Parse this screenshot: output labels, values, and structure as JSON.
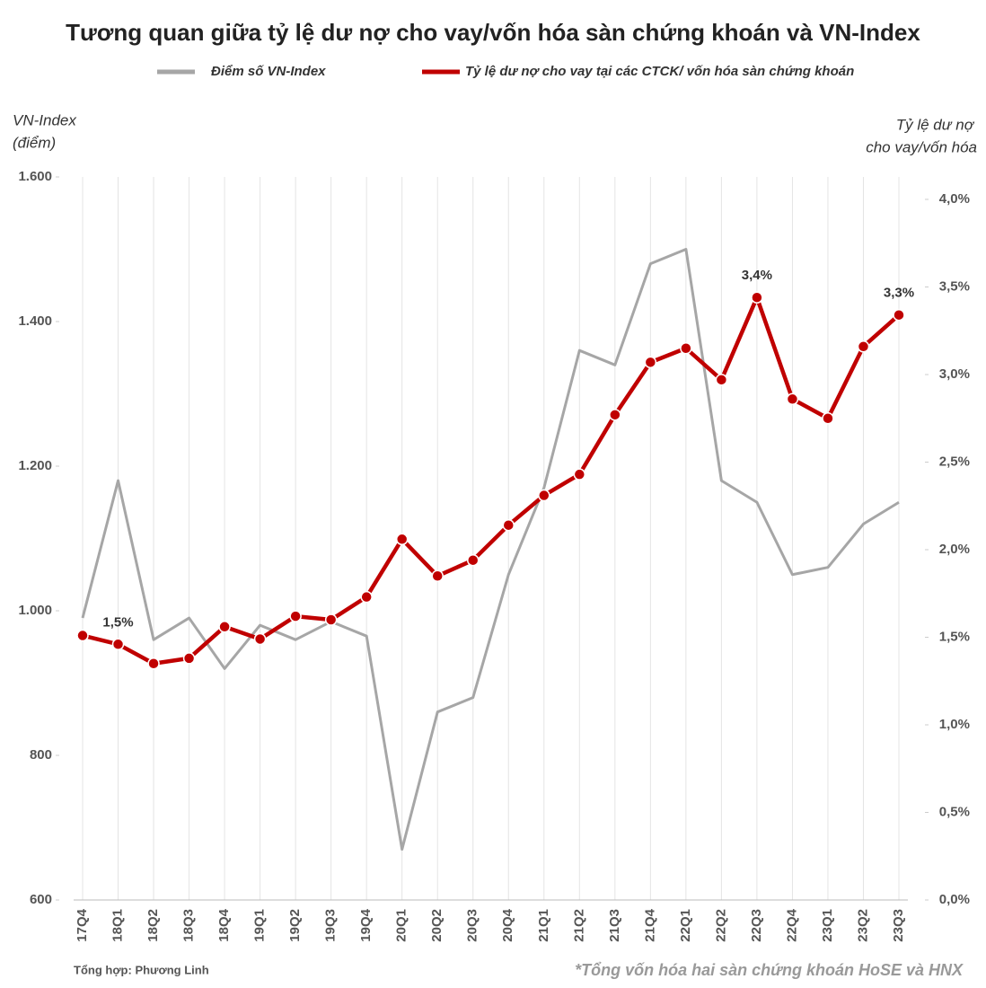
{
  "chart_data": {
    "type": "line",
    "title": "Tương quan giữa tỷ lệ dư nợ cho vay/vốn hóa sàn chứng khoán và VN-Index",
    "y_label": [
      "VN-Index",
      "(điểm)"
    ],
    "y2_label": [
      "Tỷ lệ dư nợ",
      "cho vay/vốn hóa"
    ],
    "source": "Tổng hợp: Phương Linh",
    "note": "*Tổng vốn hóa hai sàn chứng khoán HoSE và HNX",
    "categories": [
      "17Q4",
      "18Q1",
      "18Q2",
      "18Q3",
      "18Q4",
      "19Q1",
      "19Q2",
      "19Q3",
      "19Q4",
      "20Q1",
      "20Q2",
      "20Q3",
      "20Q4",
      "21Q1",
      "21Q2",
      "21Q3",
      "21Q4",
      "22Q1",
      "22Q2",
      "22Q3",
      "22Q4",
      "23Q1",
      "23Q2",
      "23Q3"
    ],
    "series": [
      {
        "name": "Điểm số VN-Index",
        "color": "#a6a6a6",
        "axis": "y",
        "values": [
          990,
          1180,
          960,
          990,
          920,
          980,
          960,
          985,
          965,
          670,
          860,
          880,
          1050,
          1170,
          1360,
          1340,
          1480,
          1500,
          1180,
          1150,
          1050,
          1060,
          1120,
          1150
        ]
      },
      {
        "name": "Tỷ lệ dư nợ cho vay tại các CTCK/ vốn hóa sàn chứng khoán",
        "color": "#c00000",
        "axis": "y2",
        "values": [
          1.51,
          1.46,
          1.35,
          1.38,
          1.56,
          1.49,
          1.62,
          1.6,
          1.73,
          2.06,
          1.85,
          1.94,
          2.14,
          2.31,
          2.43,
          2.77,
          3.07,
          3.15,
          2.97,
          3.44,
          2.86,
          2.75,
          3.16,
          3.34
        ],
        "value_labels": [
          null,
          "1,5%",
          null,
          null,
          null,
          null,
          null,
          null,
          null,
          null,
          null,
          null,
          null,
          null,
          null,
          null,
          null,
          null,
          null,
          "3,4%",
          null,
          null,
          null,
          "3,3%"
        ]
      }
    ],
    "ylim": [
      600,
      1600
    ],
    "yticks": [
      600,
      800,
      {
        "value": 1000,
        "label": "1.000"
      },
      {
        "value": 1200,
        "label": "1.200"
      },
      {
        "value": 1400,
        "label": "1.400"
      },
      {
        "value": 1600,
        "label": "1.600"
      }
    ],
    "y2lim": [
      0,
      4
    ],
    "y2ticks": [
      {
        "value": 0,
        "label": "0,0%"
      },
      {
        "value": 0.5,
        "label": "0,5%"
      },
      {
        "value": 1,
        "label": "1,0%"
      },
      {
        "value": 1.5,
        "label": "1,5%"
      },
      {
        "value": 2,
        "label": "2,0%"
      },
      {
        "value": 2.5,
        "label": "2,5%"
      },
      {
        "value": 3,
        "label": "3,0%"
      },
      {
        "value": 3.5,
        "label": "3,5%"
      },
      {
        "value": 4,
        "label": "4,0%"
      }
    ],
    "grid": true
  }
}
